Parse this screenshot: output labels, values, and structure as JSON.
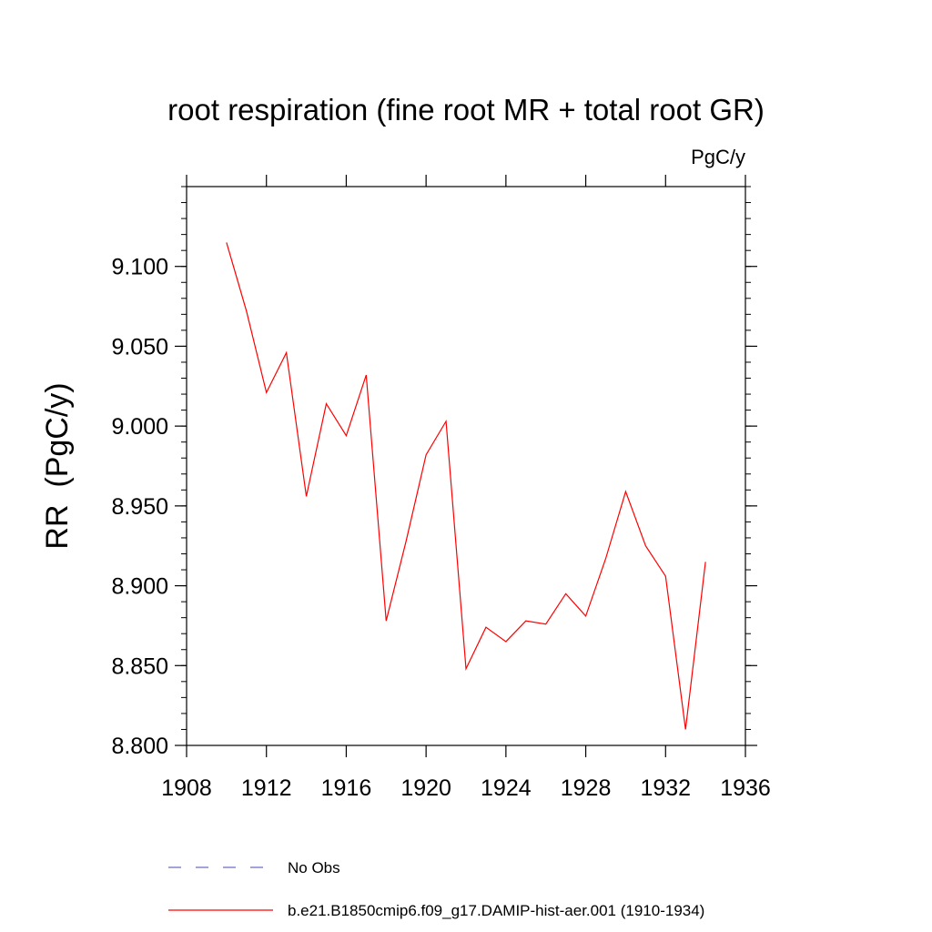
{
  "chart_data": {
    "type": "line",
    "title": "root respiration (fine root MR + total root GR)",
    "units_label": "PgC/y",
    "ylabel": "RR  (PgC/y)",
    "xlabel": "",
    "xlim": [
      1908,
      1936
    ],
    "ylim": [
      8.8,
      9.15
    ],
    "x_ticks": [
      1908,
      1912,
      1916,
      1920,
      1924,
      1928,
      1932,
      1936
    ],
    "x_tick_labels": [
      "1908",
      "1912",
      "1916",
      "1920",
      "1924",
      "1928",
      "1932",
      "1936"
    ],
    "y_ticks": [
      8.8,
      8.85,
      8.9,
      8.95,
      9.0,
      9.05,
      9.1
    ],
    "y_tick_labels": [
      "8.800",
      "8.850",
      "8.900",
      "8.950",
      "9.000",
      "9.050",
      "9.100"
    ],
    "grid": false,
    "legend_position": "bottom",
    "series": [
      {
        "name": "b.e21.B1850cmip6.f09_g17.DAMIP-hist-aer.001 (1910-1934)",
        "color": "#ff0000",
        "style": "solid",
        "x": [
          1910,
          1911,
          1912,
          1913,
          1914,
          1915,
          1916,
          1917,
          1918,
          1919,
          1920,
          1921,
          1922,
          1923,
          1924,
          1925,
          1926,
          1927,
          1928,
          1929,
          1930,
          1931,
          1932,
          1933,
          1934
        ],
        "y": [
          9.115,
          9.072,
          9.021,
          9.046,
          8.956,
          9.014,
          8.994,
          9.032,
          8.878,
          8.928,
          8.982,
          9.003,
          8.848,
          8.874,
          8.865,
          8.878,
          8.876,
          8.895,
          8.881,
          8.917,
          8.959,
          8.925,
          8.906,
          8.81,
          8.915
        ]
      }
    ],
    "legend": [
      {
        "label": "No Obs",
        "color": "#6b6bc8",
        "style": "dashed"
      },
      {
        "label": "b.e21.B1850cmip6.f09_g17.DAMIP-hist-aer.001 (1910-1934)",
        "color": "#ff0000",
        "style": "solid"
      }
    ]
  }
}
